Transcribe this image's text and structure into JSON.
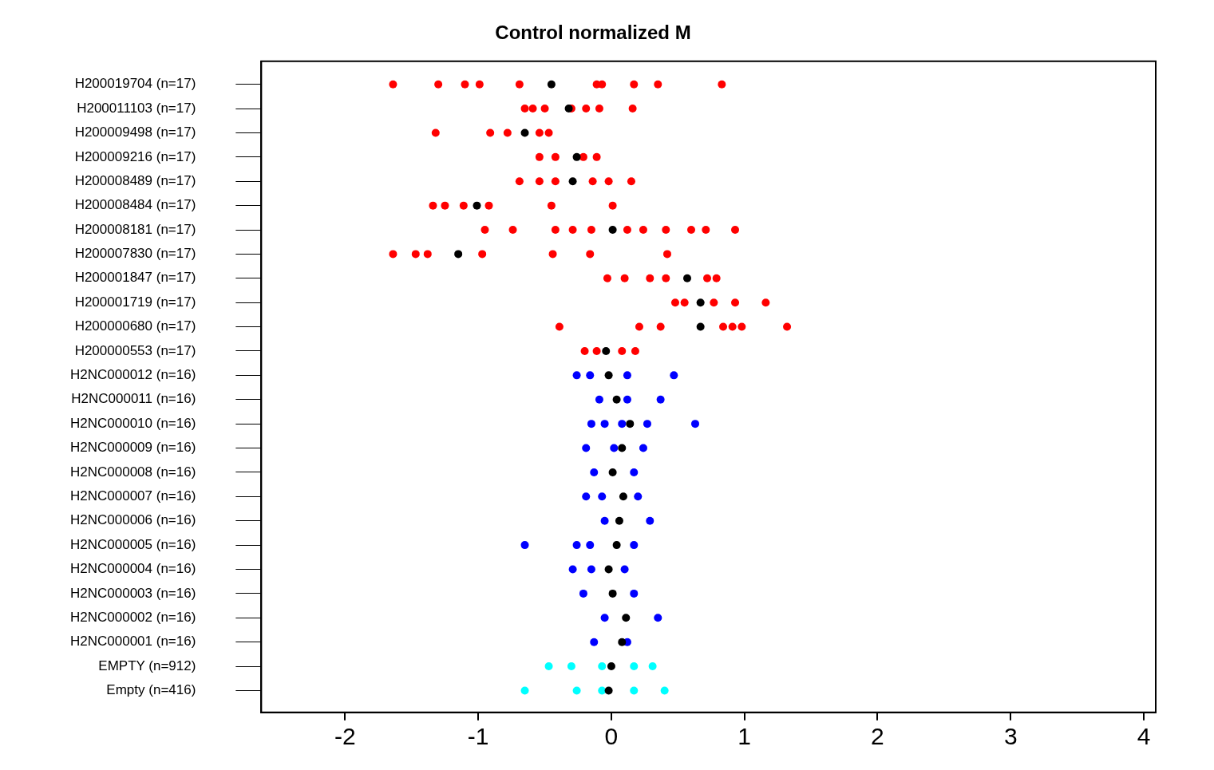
{
  "chart_data": {
    "type": "scatter",
    "title": "Control normalized M",
    "orientation": "horizontal",
    "marker": "circle",
    "categories": [
      "H200019704 (n=17)",
      "H200011103 (n=17)",
      "H200009498 (n=17)",
      "H200009216 (n=17)",
      "H200008489 (n=17)",
      "H200008484 (n=17)",
      "H200008181 (n=17)",
      "H200007830 (n=17)",
      "H200001847 (n=17)",
      "H200001719 (n=17)",
      "H200000680 (n=17)",
      "H200000553 (n=17)",
      "H2NC000012 (n=16)",
      "H2NC000011 (n=16)",
      "H2NC000010 (n=16)",
      "H2NC000009 (n=16)",
      "H2NC000008 (n=16)",
      "H2NC000007 (n=16)",
      "H2NC000006 (n=16)",
      "H2NC000005 (n=16)",
      "H2NC000004 (n=16)",
      "H2NC000003 (n=16)",
      "H2NC000002 (n=16)",
      "H2NC000001 (n=16)",
      "EMPTY (n=912)",
      "Empty (n=416)"
    ],
    "xlim": [
      -2.63,
      4.09
    ],
    "xticks": [
      -2,
      -1,
      0,
      1,
      2,
      3,
      4
    ],
    "series": [
      {
        "color": "#ff0000",
        "x": [
          "H200019704 (n=17)",
          "H200019704 (n=17)",
          "H200019704 (n=17)",
          "H200019704 (n=17)",
          "H200019704 (n=17)",
          "H200019704 (n=17)",
          "H200019704 (n=17)",
          "H200019704 (n=17)",
          "H200019704 (n=17)",
          "H200019704 (n=17)",
          "H200011103 (n=17)",
          "H200011103 (n=17)",
          "H200011103 (n=17)",
          "H200011103 (n=17)",
          "H200011103 (n=17)",
          "H200011103 (n=17)",
          "H200011103 (n=17)",
          "H200009498 (n=17)",
          "H200009498 (n=17)",
          "H200009498 (n=17)",
          "H200009498 (n=17)",
          "H200009498 (n=17)",
          "H200009216 (n=17)",
          "H200009216 (n=17)",
          "H200009216 (n=17)",
          "H200009216 (n=17)",
          "H200008489 (n=17)",
          "H200008489 (n=17)",
          "H200008489 (n=17)",
          "H200008489 (n=17)",
          "H200008489 (n=17)",
          "H200008489 (n=17)",
          "H200008484 (n=17)",
          "H200008484 (n=17)",
          "H200008484 (n=17)",
          "H200008484 (n=17)",
          "H200008484 (n=17)",
          "H200008484 (n=17)",
          "H200008181 (n=17)",
          "H200008181 (n=17)",
          "H200008181 (n=17)",
          "H200008181 (n=17)",
          "H200008181 (n=17)",
          "H200008181 (n=17)",
          "H200008181 (n=17)",
          "H200008181 (n=17)",
          "H200008181 (n=17)",
          "H200008181 (n=17)",
          "H200008181 (n=17)",
          "H200007830 (n=17)",
          "H200007830 (n=17)",
          "H200007830 (n=17)",
          "H200007830 (n=17)",
          "H200007830 (n=17)",
          "H200007830 (n=17)",
          "H200007830 (n=17)",
          "H200001847 (n=17)",
          "H200001847 (n=17)",
          "H200001847 (n=17)",
          "H200001847 (n=17)",
          "H200001847 (n=17)",
          "H200001847 (n=17)",
          "H200001719 (n=17)",
          "H200001719 (n=17)",
          "H200001719 (n=17)",
          "H200001719 (n=17)",
          "H200001719 (n=17)",
          "H200000680 (n=17)",
          "H200000680 (n=17)",
          "H200000680 (n=17)",
          "H200000680 (n=17)",
          "H200000680 (n=17)",
          "H200000680 (n=17)",
          "H200000680 (n=17)",
          "H200000553 (n=17)",
          "H200000553 (n=17)",
          "H200000553 (n=17)",
          "H200000553 (n=17)"
        ],
        "values": [
          -1.64,
          -1.3,
          -1.1,
          -0.99,
          -0.69,
          -0.11,
          -0.07,
          0.17,
          0.35,
          0.83,
          -0.65,
          -0.59,
          -0.5,
          -0.3,
          -0.19,
          -0.09,
          0.16,
          -1.32,
          -0.91,
          -0.78,
          -0.54,
          -0.47,
          -0.54,
          -0.42,
          -0.21,
          -0.11,
          -0.69,
          -0.54,
          -0.42,
          -0.14,
          -0.02,
          0.15,
          -1.34,
          -1.25,
          -1.11,
          -0.92,
          -0.45,
          0.01,
          -0.95,
          -0.74,
          -0.42,
          -0.29,
          -0.15,
          0.12,
          0.24,
          0.41,
          0.6,
          0.71,
          0.93,
          -1.64,
          -1.47,
          -1.38,
          -0.97,
          -0.44,
          -0.16,
          0.42,
          -0.03,
          0.1,
          0.29,
          0.41,
          0.72,
          0.79,
          0.48,
          0.55,
          0.77,
          0.93,
          1.16,
          -0.39,
          0.21,
          0.37,
          0.84,
          0.91,
          0.98,
          1.32,
          -0.2,
          -0.11,
          0.08,
          0.18
        ]
      },
      {
        "color": "#0000ff",
        "x": [
          "H2NC000012 (n=16)",
          "H2NC000012 (n=16)",
          "H2NC000012 (n=16)",
          "H2NC000012 (n=16)",
          "H2NC000011 (n=16)",
          "H2NC000011 (n=16)",
          "H2NC000011 (n=16)",
          "H2NC000010 (n=16)",
          "H2NC000010 (n=16)",
          "H2NC000010 (n=16)",
          "H2NC000010 (n=16)",
          "H2NC000010 (n=16)",
          "H2NC000009 (n=16)",
          "H2NC000009 (n=16)",
          "H2NC000009 (n=16)",
          "H2NC000008 (n=16)",
          "H2NC000008 (n=16)",
          "H2NC000007 (n=16)",
          "H2NC000007 (n=16)",
          "H2NC000007 (n=16)",
          "H2NC000006 (n=16)",
          "H2NC000006 (n=16)",
          "H2NC000005 (n=16)",
          "H2NC000005 (n=16)",
          "H2NC000005 (n=16)",
          "H2NC000005 (n=16)",
          "H2NC000004 (n=16)",
          "H2NC000004 (n=16)",
          "H2NC000004 (n=16)",
          "H2NC000003 (n=16)",
          "H2NC000003 (n=16)",
          "H2NC000002 (n=16)",
          "H2NC000002 (n=16)",
          "H2NC000001 (n=16)",
          "H2NC000001 (n=16)"
        ],
        "values": [
          -0.26,
          -0.16,
          0.12,
          0.47,
          -0.09,
          0.12,
          0.37,
          -0.15,
          -0.05,
          0.08,
          0.27,
          0.63,
          -0.19,
          0.02,
          0.24,
          -0.13,
          0.17,
          -0.19,
          -0.07,
          0.2,
          -0.05,
          0.29,
          -0.65,
          -0.26,
          -0.16,
          0.17,
          -0.29,
          -0.15,
          0.1,
          -0.21,
          0.17,
          -0.05,
          0.35,
          -0.13,
          0.12
        ]
      },
      {
        "color": "#00ffff",
        "x": [
          "EMPTY (n=912)",
          "EMPTY (n=912)",
          "EMPTY (n=912)",
          "EMPTY (n=912)",
          "EMPTY (n=912)",
          "Empty (n=416)",
          "Empty (n=416)",
          "Empty (n=416)",
          "Empty (n=416)",
          "Empty (n=416)"
        ],
        "values": [
          -0.47,
          -0.3,
          -0.07,
          0.17,
          0.31,
          -0.65,
          -0.26,
          -0.07,
          0.17,
          0.4
        ]
      },
      {
        "color": "#000000",
        "x": [
          "H200019704 (n=17)",
          "H200011103 (n=17)",
          "H200009498 (n=17)",
          "H200009216 (n=17)",
          "H200008489 (n=17)",
          "H200008484 (n=17)",
          "H200008181 (n=17)",
          "H200007830 (n=17)",
          "H200001847 (n=17)",
          "H200001719 (n=17)",
          "H200000680 (n=17)",
          "H200000553 (n=17)",
          "H2NC000012 (n=16)",
          "H2NC000011 (n=16)",
          "H2NC000010 (n=16)",
          "H2NC000009 (n=16)",
          "H2NC000008 (n=16)",
          "H2NC000007 (n=16)",
          "H2NC000006 (n=16)",
          "H2NC000005 (n=16)",
          "H2NC000004 (n=16)",
          "H2NC000003 (n=16)",
          "H2NC000002 (n=16)",
          "H2NC000001 (n=16)",
          "EMPTY (n=912)",
          "Empty (n=416)"
        ],
        "values": [
          -0.45,
          -0.32,
          -0.65,
          -0.26,
          -0.29,
          -1.01,
          0.01,
          -1.15,
          0.57,
          0.67,
          0.67,
          -0.04,
          -0.02,
          0.04,
          0.14,
          0.08,
          0.01,
          0.09,
          0.06,
          0.04,
          -0.02,
          0.01,
          0.11,
          0.08,
          0.0,
          -0.02
        ]
      }
    ]
  }
}
